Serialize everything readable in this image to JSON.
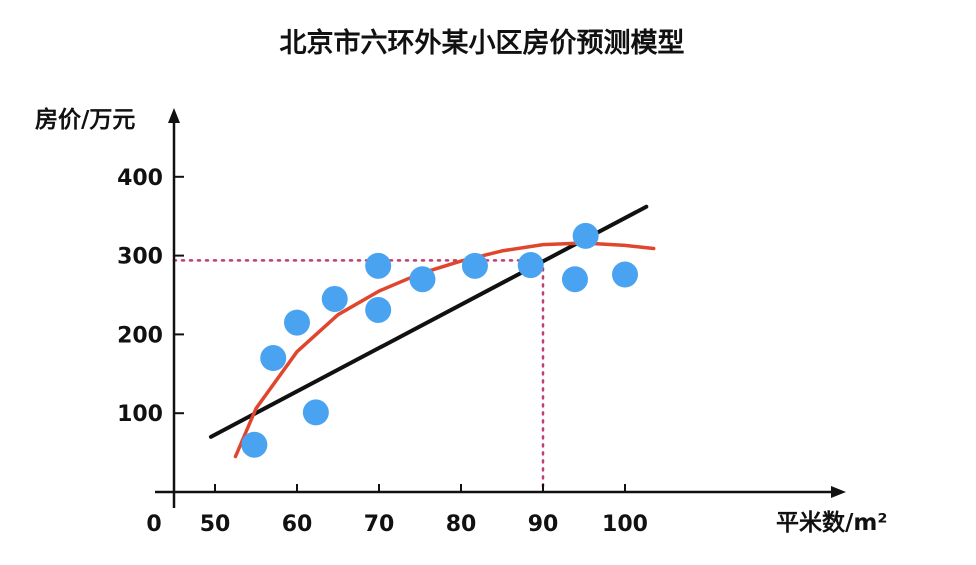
{
  "chart_data": {
    "type": "scatter",
    "title": "北京市六环外某小区房价预测模型",
    "xlabel": "平米数/m²",
    "ylabel": "房价/万元",
    "origin_label": "0",
    "x_ticks": [
      50,
      60,
      70,
      80,
      90,
      100
    ],
    "y_ticks": [
      100,
      200,
      300,
      400
    ],
    "points": [
      {
        "x": 54.8,
        "y": 60
      },
      {
        "x": 57.1,
        "y": 170
      },
      {
        "x": 60.0,
        "y": 215
      },
      {
        "x": 62.3,
        "y": 101
      },
      {
        "x": 64.6,
        "y": 245
      },
      {
        "x": 69.9,
        "y": 287
      },
      {
        "x": 69.9,
        "y": 231
      },
      {
        "x": 75.3,
        "y": 270
      },
      {
        "x": 81.7,
        "y": 287
      },
      {
        "x": 88.5,
        "y": 288
      },
      {
        "x": 93.9,
        "y": 270
      },
      {
        "x": 95.2,
        "y": 325
      },
      {
        "x": 100.0,
        "y": 276
      }
    ],
    "linear_fit": {
      "color": "#111111",
      "from": {
        "x": 49.5,
        "y": 70
      },
      "to": {
        "x": 102.6,
        "y": 362
      }
    },
    "curve_fit": {
      "color": "#e0452d",
      "points": [
        {
          "x": 52.5,
          "y": 45
        },
        {
          "x": 55,
          "y": 106
        },
        {
          "x": 57.5,
          "y": 142
        },
        {
          "x": 60,
          "y": 178
        },
        {
          "x": 65,
          "y": 225
        },
        {
          "x": 70,
          "y": 255
        },
        {
          "x": 75,
          "y": 277
        },
        {
          "x": 80,
          "y": 293
        },
        {
          "x": 85,
          "y": 306
        },
        {
          "x": 90,
          "y": 314
        },
        {
          "x": 95,
          "y": 316
        },
        {
          "x": 100,
          "y": 313
        },
        {
          "x": 103.5,
          "y": 309
        }
      ]
    },
    "reference_lines": {
      "color": "#c23b74",
      "x": 90,
      "y": 294
    },
    "point_color": "#4aa3f0",
    "xlim": [
      45,
      110
    ],
    "ylim": [
      0,
      430
    ],
    "grid": false
  }
}
